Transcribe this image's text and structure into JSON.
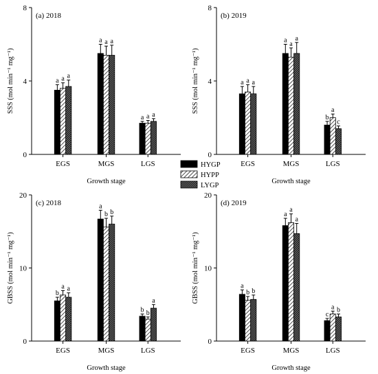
{
  "chart_data": [
    {
      "type": "bar",
      "panel_label": "(a)  2018",
      "categories": [
        "EGS",
        "MGS",
        "LGS"
      ],
      "xlabel": "Growth stage",
      "ylabel": "SSS (mol min⁻¹ mg⁻¹)",
      "ylim": [
        0,
        8
      ],
      "yticks": [
        "0",
        "4",
        "8"
      ],
      "series": [
        {
          "name": "HYGP",
          "values": [
            3.5,
            5.5,
            1.7
          ],
          "errors": [
            0.3,
            0.5,
            0.1
          ],
          "letters": [
            "a",
            "a",
            "a"
          ]
        },
        {
          "name": "HYPP",
          "values": [
            3.6,
            5.4,
            1.7
          ],
          "errors": [
            0.3,
            0.5,
            0.15
          ],
          "letters": [
            "a",
            "a",
            "a"
          ]
        },
        {
          "name": "LYGP",
          "values": [
            3.7,
            5.4,
            1.8
          ],
          "errors": [
            0.35,
            0.55,
            0.15
          ],
          "letters": [
            "a",
            "a",
            "a"
          ]
        }
      ]
    },
    {
      "type": "bar",
      "panel_label": "(b)  2019",
      "categories": [
        "EGS",
        "MGS",
        "LGS"
      ],
      "xlabel": "Growth stage",
      "ylabel": "SSS (mol min⁻¹ mg⁻¹)",
      "ylim": [
        0,
        8
      ],
      "yticks": [
        "0",
        "4",
        "8"
      ],
      "series": [
        {
          "name": "HYGP",
          "values": [
            3.3,
            5.5,
            1.6
          ],
          "errors": [
            0.4,
            0.5,
            0.2
          ],
          "letters": [
            "a",
            "a",
            "b"
          ]
        },
        {
          "name": "HYPP",
          "values": [
            3.4,
            5.3,
            2.0
          ],
          "errors": [
            0.4,
            0.5,
            0.2
          ],
          "letters": [
            "a",
            "a",
            "a"
          ]
        },
        {
          "name": "LYGP",
          "values": [
            3.3,
            5.5,
            1.4
          ],
          "errors": [
            0.4,
            0.6,
            0.15
          ],
          "letters": [
            "a",
            "a",
            "c"
          ]
        }
      ]
    },
    {
      "type": "bar",
      "panel_label": "(c)  2018",
      "categories": [
        "EGS",
        "MGS",
        "LGS"
      ],
      "xlabel": "Growth stage",
      "ylabel": "GBSS (mol min⁻¹ mg⁻¹)",
      "ylim": [
        0,
        20
      ],
      "yticks": [
        "0",
        "10",
        "20"
      ],
      "series": [
        {
          "name": "HYGP",
          "values": [
            5.5,
            16.7,
            3.4
          ],
          "errors": [
            0.5,
            1.2,
            0.3
          ],
          "letters": [
            "b",
            "a",
            "b"
          ]
        },
        {
          "name": "HYPP",
          "values": [
            6.3,
            15.6,
            3.0
          ],
          "errors": [
            0.6,
            1.2,
            0.3
          ],
          "letters": [
            "a",
            "b",
            "b"
          ]
        },
        {
          "name": "LYGP",
          "values": [
            6.0,
            16.0,
            4.5
          ],
          "errors": [
            0.6,
            1.1,
            0.5
          ],
          "letters": [
            "a",
            "b",
            "a"
          ]
        }
      ]
    },
    {
      "type": "bar",
      "panel_label": "(d)  2019",
      "categories": [
        "EGS",
        "MGS",
        "LGS"
      ],
      "xlabel": "Growth stage",
      "ylabel": "GBSS (mol min⁻¹ mg⁻¹)",
      "ylim": [
        0,
        20
      ],
      "yticks": [
        "0",
        "10",
        "20"
      ],
      "series": [
        {
          "name": "HYGP",
          "values": [
            6.4,
            15.8,
            2.8
          ],
          "errors": [
            0.6,
            1.0,
            0.3
          ],
          "letters": [
            "a",
            "a",
            "c"
          ]
        },
        {
          "name": "HYPP",
          "values": [
            5.6,
            16.2,
            3.7
          ],
          "errors": [
            0.5,
            1.2,
            0.4
          ],
          "letters": [
            "b",
            "a",
            "a"
          ]
        },
        {
          "name": "LYGP",
          "values": [
            5.7,
            14.7,
            3.3
          ],
          "errors": [
            0.6,
            1.4,
            0.4
          ],
          "letters": [
            "b",
            "a",
            "b"
          ]
        }
      ]
    }
  ],
  "legend": {
    "items": [
      {
        "name": "HYGP",
        "pattern": "solid"
      },
      {
        "name": "HYPP",
        "pattern": "hatch"
      },
      {
        "name": "LYGP",
        "pattern": "dots"
      }
    ]
  }
}
